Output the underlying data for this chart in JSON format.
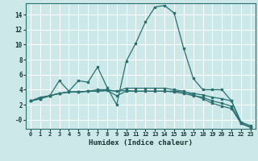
{
  "xlabel": "Humidex (Indice chaleur)",
  "xlim": [
    -0.5,
    23.5
  ],
  "ylim": [
    -1.2,
    15.5
  ],
  "bg_color": "#cce8e8",
  "grid_color": "#b0d4d4",
  "line_color": "#2a7070",
  "series": [
    {
      "x": [
        0,
        1,
        2,
        3,
        4,
        5,
        6,
        7,
        8,
        9,
        10,
        11,
        12,
        13,
        14,
        15,
        16,
        17,
        18,
        19,
        20,
        21,
        22,
        23
      ],
      "y": [
        2.5,
        3.0,
        3.2,
        5.2,
        3.8,
        5.2,
        5.0,
        7.0,
        4.3,
        2.0,
        7.8,
        10.2,
        13.0,
        15.0,
        15.2,
        14.2,
        9.5,
        5.5,
        4.0,
        4.0,
        4.0,
        2.5,
        -0.5,
        -1.0
      ]
    },
    {
      "x": [
        0,
        1,
        2,
        3,
        4,
        5,
        6,
        7,
        8,
        9,
        10,
        11,
        12,
        13,
        14,
        15,
        16,
        17,
        18,
        19,
        20,
        21,
        22,
        23
      ],
      "y": [
        2.5,
        2.8,
        3.2,
        3.5,
        3.7,
        3.7,
        3.8,
        3.8,
        3.9,
        3.8,
        3.9,
        3.8,
        3.8,
        3.8,
        3.8,
        3.8,
        3.7,
        3.5,
        3.3,
        3.0,
        2.8,
        2.5,
        -0.3,
        -0.8
      ]
    },
    {
      "x": [
        0,
        1,
        2,
        3,
        4,
        5,
        6,
        7,
        8,
        9,
        10,
        11,
        12,
        13,
        14,
        15,
        16,
        17,
        18,
        19,
        20,
        21,
        22,
        23
      ],
      "y": [
        2.5,
        2.8,
        3.2,
        3.5,
        3.7,
        3.7,
        3.8,
        3.8,
        3.9,
        3.2,
        3.8,
        3.8,
        3.8,
        3.8,
        3.8,
        3.7,
        3.5,
        3.2,
        3.0,
        2.5,
        2.2,
        1.8,
        -0.5,
        -1.0
      ]
    },
    {
      "x": [
        0,
        1,
        2,
        3,
        4,
        5,
        6,
        7,
        8,
        9,
        10,
        11,
        12,
        13,
        14,
        15,
        16,
        17,
        18,
        19,
        20,
        21,
        22,
        23
      ],
      "y": [
        2.5,
        2.8,
        3.2,
        3.5,
        3.7,
        3.7,
        3.8,
        4.0,
        4.0,
        3.8,
        4.2,
        4.2,
        4.2,
        4.2,
        4.2,
        4.0,
        3.8,
        3.3,
        2.8,
        2.2,
        1.8,
        1.5,
        -0.5,
        -1.0
      ]
    }
  ]
}
